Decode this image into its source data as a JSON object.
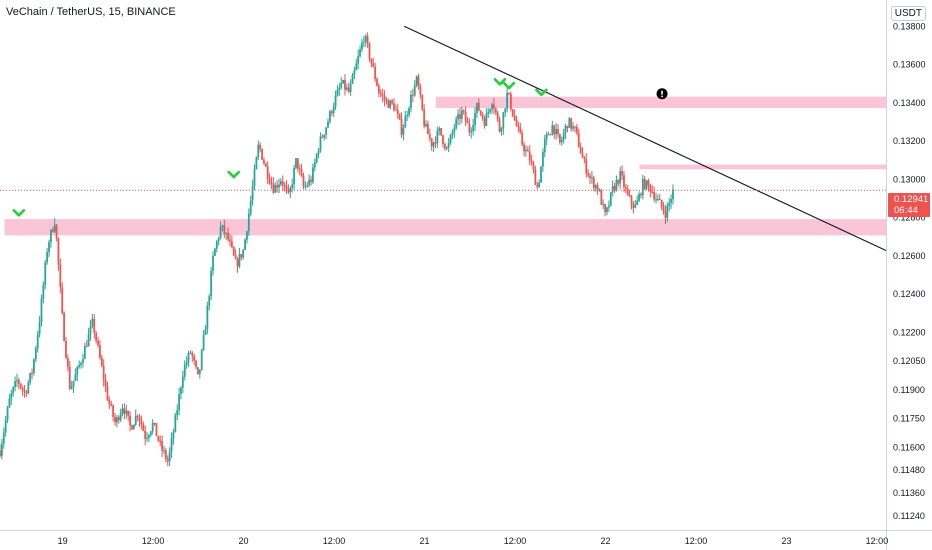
{
  "header": {
    "title": "VeChain / TetherUS, 15, BINANCE",
    "currency": "USDT"
  },
  "last_price": {
    "value": "0.12941",
    "countdown": "06:44"
  },
  "chart_data": {
    "type": "candlestick",
    "ylim": [
      0.11165,
      0.13935
    ],
    "y_ticks": [
      "0.13800",
      "0.13600",
      "0.13400",
      "0.13200",
      "0.13000",
      "0.12800",
      "0.12600",
      "0.12400",
      "0.12200",
      "0.12050",
      "0.11900",
      "0.11750",
      "0.11600",
      "0.11480",
      "0.11360",
      "0.11240"
    ],
    "x_ticks": [
      "19",
      "12:00",
      "20",
      "12:00",
      "21",
      "12:00",
      "22",
      "12:00",
      "23",
      "12:00"
    ],
    "x_tick_hours": [
      24,
      36,
      48,
      60,
      72,
      84,
      96,
      108,
      120,
      132
    ],
    "x_hours_range": [
      15.7,
      133.2
    ],
    "path_hours": [
      15.7,
      17,
      18,
      19,
      20,
      21,
      22,
      23,
      24,
      25,
      26,
      27,
      28,
      29,
      30,
      31,
      32,
      33,
      34,
      35,
      36,
      37,
      38,
      39,
      40,
      41,
      42,
      43,
      44,
      45,
      46,
      47,
      48,
      49,
      50,
      51,
      52,
      53,
      54,
      55,
      56,
      57,
      58,
      59,
      60,
      61,
      62,
      63,
      64,
      65,
      66,
      67,
      68,
      69,
      70,
      71,
      72,
      73,
      74,
      75,
      76,
      77,
      78,
      79,
      80,
      81,
      82,
      83,
      84,
      85,
      86,
      87,
      88,
      89,
      90,
      91,
      92,
      93,
      94,
      95,
      96,
      97,
      98,
      99,
      100,
      101,
      102,
      103,
      104,
      105
    ],
    "path_prices": [
      0.1158,
      0.1185,
      0.1195,
      0.1188,
      0.12,
      0.1228,
      0.1265,
      0.1279,
      0.1225,
      0.119,
      0.12,
      0.1212,
      0.1225,
      0.1205,
      0.1185,
      0.1172,
      0.1182,
      0.117,
      0.1178,
      0.1165,
      0.1172,
      0.116,
      0.1152,
      0.1175,
      0.12,
      0.121,
      0.1195,
      0.1225,
      0.126,
      0.1275,
      0.1268,
      0.1255,
      0.1263,
      0.129,
      0.1318,
      0.1305,
      0.1295,
      0.13,
      0.129,
      0.131,
      0.1295,
      0.13,
      0.1318,
      0.1328,
      0.134,
      0.135,
      0.1345,
      0.136,
      0.1375,
      0.136,
      0.1345,
      0.134,
      0.1338,
      0.1325,
      0.134,
      0.1352,
      0.1328,
      0.1318,
      0.1325,
      0.1315,
      0.1328,
      0.1335,
      0.1325,
      0.1338,
      0.133,
      0.1342,
      0.1325,
      0.1345,
      0.133,
      0.1318,
      0.131,
      0.1295,
      0.132,
      0.1328,
      0.1318,
      0.133,
      0.1325,
      0.131,
      0.13,
      0.1295,
      0.128,
      0.1295,
      0.1302,
      0.129,
      0.1285,
      0.1298,
      0.1295,
      0.1288,
      0.1282,
      0.1294
    ],
    "zones": [
      {
        "from_hour": 16.3,
        "price_low": 0.12705,
        "price_high": 0.1279
      },
      {
        "from_hour": 73.5,
        "price_low": 0.1337,
        "price_high": 0.1343
      },
      {
        "from_hour": 100.5,
        "price_low": 0.1305,
        "price_high": 0.13075
      }
    ],
    "trendline": {
      "from": [
        69.3,
        0.13798
      ],
      "to": [
        133.2,
        0.12626
      ]
    },
    "last_price_value": 0.12941,
    "markers": [
      {
        "hour": 18.2,
        "price": 0.1282,
        "kind": "check"
      },
      {
        "hour": 46.7,
        "price": 0.1302,
        "kind": "check"
      },
      {
        "hour": 82.0,
        "price": 0.13505,
        "kind": "check"
      },
      {
        "hour": 83.2,
        "price": 0.13485,
        "kind": "check"
      },
      {
        "hour": 87.5,
        "price": 0.1345,
        "kind": "check"
      },
      {
        "hour": 103.5,
        "price": 0.13445,
        "kind": "alert"
      }
    ],
    "colors": {
      "up": "#26a69a",
      "down": "#ef5350",
      "zone": "#f8bbd0",
      "trendline": "#131722",
      "marker": "#22d13a",
      "axis_text": "#131722"
    }
  }
}
